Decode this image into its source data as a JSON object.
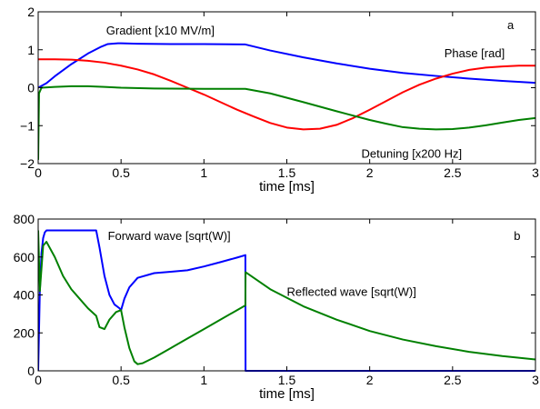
{
  "chart_data": [
    {
      "type": "line",
      "panel_label": "a",
      "xlabel": "time [ms]",
      "ylabel": "",
      "xlim": [
        0,
        3
      ],
      "ylim": [
        -2,
        2
      ],
      "xticks": [
        0,
        0.5,
        1,
        1.5,
        2,
        2.5,
        3
      ],
      "xtick_labels": [
        "0",
        "0.5",
        "1",
        "1.5",
        "2",
        "2.5",
        "3"
      ],
      "yticks": [
        -2,
        -1,
        0,
        1,
        2
      ],
      "ytick_labels": [
        "−2",
        "−1",
        "0",
        "1",
        "2"
      ],
      "grid": false,
      "series": [
        {
          "name": "Gradient [x10 MV/m]",
          "color": "#0000ff",
          "points": [
            [
              0,
              0
            ],
            [
              0.05,
              0.12
            ],
            [
              0.1,
              0.3
            ],
            [
              0.2,
              0.62
            ],
            [
              0.3,
              0.9
            ],
            [
              0.38,
              1.08
            ],
            [
              0.42,
              1.15
            ],
            [
              0.48,
              1.17
            ],
            [
              0.5,
              1.17
            ],
            [
              0.6,
              1.16
            ],
            [
              0.8,
              1.15
            ],
            [
              1.0,
              1.15
            ],
            [
              1.25,
              1.14
            ],
            [
              1.4,
              0.98
            ],
            [
              1.6,
              0.8
            ],
            [
              1.8,
              0.64
            ],
            [
              2.0,
              0.5
            ],
            [
              2.2,
              0.39
            ],
            [
              2.4,
              0.31
            ],
            [
              2.6,
              0.24
            ],
            [
              2.8,
              0.18
            ],
            [
              3.0,
              0.13
            ]
          ]
        },
        {
          "name": "Phase [rad]",
          "color": "#ff0000",
          "points": [
            [
              0,
              0.75
            ],
            [
              0.1,
              0.75
            ],
            [
              0.2,
              0.74
            ],
            [
              0.3,
              0.71
            ],
            [
              0.4,
              0.66
            ],
            [
              0.5,
              0.58
            ],
            [
              0.6,
              0.48
            ],
            [
              0.7,
              0.35
            ],
            [
              0.8,
              0.18
            ],
            [
              0.9,
              0.0
            ],
            [
              1.0,
              -0.18
            ],
            [
              1.1,
              -0.38
            ],
            [
              1.2,
              -0.58
            ],
            [
              1.3,
              -0.76
            ],
            [
              1.4,
              -0.93
            ],
            [
              1.5,
              -1.05
            ],
            [
              1.6,
              -1.1
            ],
            [
              1.7,
              -1.08
            ],
            [
              1.8,
              -0.98
            ],
            [
              1.9,
              -0.8
            ],
            [
              2.0,
              -0.58
            ],
            [
              2.1,
              -0.35
            ],
            [
              2.2,
              -0.12
            ],
            [
              2.3,
              0.08
            ],
            [
              2.4,
              0.24
            ],
            [
              2.5,
              0.37
            ],
            [
              2.6,
              0.47
            ],
            [
              2.7,
              0.53
            ],
            [
              2.8,
              0.56
            ],
            [
              2.9,
              0.58
            ],
            [
              3.0,
              0.58
            ]
          ]
        },
        {
          "name": "Detuning [x200 Hz]",
          "color": "#008000",
          "points": [
            [
              0,
              -1.9
            ],
            [
              0.005,
              -0.15
            ],
            [
              0.02,
              0.0
            ],
            [
              0.1,
              0.02
            ],
            [
              0.2,
              0.04
            ],
            [
              0.3,
              0.04
            ],
            [
              0.4,
              0.02
            ],
            [
              0.5,
              0.0
            ],
            [
              0.7,
              -0.02
            ],
            [
              1.0,
              -0.03
            ],
            [
              1.25,
              -0.03
            ],
            [
              1.4,
              -0.15
            ],
            [
              1.6,
              -0.38
            ],
            [
              1.8,
              -0.62
            ],
            [
              2.0,
              -0.85
            ],
            [
              2.1,
              -0.95
            ],
            [
              2.2,
              -1.04
            ],
            [
              2.3,
              -1.08
            ],
            [
              2.4,
              -1.1
            ],
            [
              2.5,
              -1.09
            ],
            [
              2.6,
              -1.05
            ],
            [
              2.7,
              -0.99
            ],
            [
              2.8,
              -0.92
            ],
            [
              2.9,
              -0.85
            ],
            [
              3.0,
              -0.8
            ]
          ]
        }
      ],
      "annotations": [
        {
          "text": "a",
          "x": 2.83,
          "y": 1.55
        },
        {
          "text": "Gradient [x10 MV/m]",
          "x": 0.41,
          "y": 1.4
        },
        {
          "text": "Phase [rad]",
          "x": 2.45,
          "y": 0.8
        },
        {
          "text": "Detuning [x200 Hz]",
          "x": 1.95,
          "y": -1.85
        }
      ]
    },
    {
      "type": "line",
      "panel_label": "b",
      "xlabel": "time [ms]",
      "ylabel": "",
      "xlim": [
        0,
        3
      ],
      "ylim": [
        0,
        800
      ],
      "xticks": [
        0,
        0.5,
        1,
        1.5,
        2,
        2.5,
        3
      ],
      "xtick_labels": [
        "0",
        "0.5",
        "1",
        "1.5",
        "2",
        "2.5",
        "3"
      ],
      "yticks": [
        0,
        200,
        400,
        600,
        800
      ],
      "ytick_labels": [
        "0",
        "200",
        "400",
        "600",
        "800"
      ],
      "grid": false,
      "series": [
        {
          "name": "Forward wave [sqrt(W)]",
          "color": "#0000ff",
          "points": [
            [
              0,
              0
            ],
            [
              0.01,
              420
            ],
            [
              0.02,
              620
            ],
            [
              0.03,
              700
            ],
            [
              0.04,
              730
            ],
            [
              0.05,
              740
            ],
            [
              0.1,
              740
            ],
            [
              0.2,
              740
            ],
            [
              0.3,
              740
            ],
            [
              0.35,
              740
            ],
            [
              0.37,
              650
            ],
            [
              0.4,
              500
            ],
            [
              0.43,
              400
            ],
            [
              0.46,
              350
            ],
            [
              0.49,
              330
            ],
            [
              0.5,
              320
            ],
            [
              0.52,
              380
            ],
            [
              0.55,
              440
            ],
            [
              0.6,
              490
            ],
            [
              0.7,
              515
            ],
            [
              0.8,
              522
            ],
            [
              0.9,
              530
            ],
            [
              1.0,
              550
            ],
            [
              1.1,
              573
            ],
            [
              1.2,
              597
            ],
            [
              1.25,
              610
            ],
            [
              1.251,
              0
            ],
            [
              3.0,
              0
            ]
          ]
        },
        {
          "name": "Reflected wave [sqrt(W)]",
          "color": "#008000",
          "points": [
            [
              0,
              740
            ],
            [
              0.01,
              420
            ],
            [
              0.03,
              660
            ],
            [
              0.05,
              680
            ],
            [
              0.1,
              600
            ],
            [
              0.15,
              500
            ],
            [
              0.2,
              430
            ],
            [
              0.25,
              380
            ],
            [
              0.3,
              330
            ],
            [
              0.35,
              290
            ],
            [
              0.37,
              230
            ],
            [
              0.4,
              220
            ],
            [
              0.43,
              270
            ],
            [
              0.47,
              310
            ],
            [
              0.5,
              320
            ],
            [
              0.52,
              230
            ],
            [
              0.55,
              120
            ],
            [
              0.58,
              50
            ],
            [
              0.6,
              35
            ],
            [
              0.63,
              40
            ],
            [
              0.7,
              70
            ],
            [
              0.8,
              120
            ],
            [
              0.9,
              170
            ],
            [
              1.0,
              220
            ],
            [
              1.1,
              270
            ],
            [
              1.2,
              320
            ],
            [
              1.25,
              345
            ],
            [
              1.251,
              520
            ],
            [
              1.4,
              430
            ],
            [
              1.6,
              340
            ],
            [
              1.8,
              270
            ],
            [
              2.0,
              210
            ],
            [
              2.2,
              165
            ],
            [
              2.4,
              130
            ],
            [
              2.6,
              100
            ],
            [
              2.8,
              78
            ],
            [
              3.0,
              60
            ]
          ]
        }
      ],
      "annotations": [
        {
          "text": "b",
          "x": 2.87,
          "y": 690
        },
        {
          "text": "Forward wave [sqrt(W)]",
          "x": 0.42,
          "y": 690
        },
        {
          "text": "Reflected wave [sqrt(W)]",
          "x": 1.5,
          "y": 395
        }
      ]
    }
  ]
}
